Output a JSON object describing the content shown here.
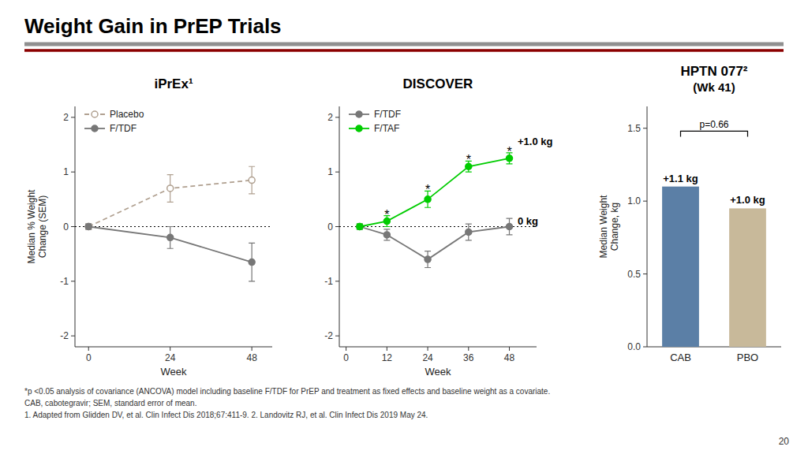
{
  "title": "Weight Gain in PrEP Trials",
  "footnotes": [
    "*p <0.05 analysis of covariance (ANCOVA) model including baseline F/TDF for PrEP and treatment as fixed effects and baseline weight as a covariate.",
    "CAB, cabotegravir; SEM, standard error of mean.",
    "1. Adapted from Glidden DV, et al. Clin Infect Dis 2018;67:411-9. 2. Landovitz RJ, et al. Clin Infect Dis 2019 May 24."
  ],
  "page_number": "20",
  "chart_data": [
    {
      "type": "line",
      "title": "iPrEx¹",
      "x_label": "Week",
      "y_label": "Median % Weight\nChange (SEM)",
      "x": [
        0,
        24,
        48
      ],
      "xlim": [
        -4,
        54
      ],
      "xticks": [
        0,
        24,
        48
      ],
      "ylim": [
        -2.2,
        2.2
      ],
      "yticks": [
        -2,
        -1,
        0,
        1,
        2
      ],
      "grid": false,
      "legend": "upper left",
      "reference_line": {
        "y": 0,
        "line_style": "dotted"
      },
      "series": [
        {
          "name": "Placebo",
          "color": "#b0a090",
          "line_style": "dashed",
          "marker": "circle-open",
          "values": [
            0.0,
            0.7,
            0.85
          ],
          "errors": [
            0.05,
            0.25,
            0.25
          ]
        },
        {
          "name": "F/TDF",
          "color": "#777777",
          "line_style": "solid",
          "marker": "circle",
          "values": [
            0.0,
            -0.2,
            -0.65
          ],
          "errors": [
            0.05,
            0.2,
            0.35
          ]
        }
      ]
    },
    {
      "type": "line",
      "title": "DISCOVER",
      "x_label": "Week",
      "x": [
        4,
        12,
        24,
        36,
        48
      ],
      "xlim": [
        -2,
        56
      ],
      "xticks": [
        0,
        12,
        24,
        36,
        48
      ],
      "ylim": [
        -2.2,
        2.2
      ],
      "yticks": [
        -2,
        -1,
        0,
        1,
        2
      ],
      "grid": false,
      "legend": "upper left",
      "reference_line": {
        "y": 0,
        "line_style": "dotted"
      },
      "series": [
        {
          "name": "F/TDF",
          "color": "#777777",
          "line_style": "solid",
          "marker": "circle",
          "values": [
            0.0,
            -0.15,
            -0.6,
            -0.1,
            0.0
          ],
          "errors": [
            0.05,
            0.1,
            0.15,
            0.15,
            0.15
          ]
        },
        {
          "name": "F/TAF",
          "color": "#00cc00",
          "line_style": "solid",
          "marker": "circle",
          "values": [
            0.0,
            0.1,
            0.5,
            1.1,
            1.25
          ],
          "errors": [
            0.05,
            0.1,
            0.15,
            0.1,
            0.1
          ]
        }
      ],
      "annotations": [
        {
          "text": "*",
          "x": 12
        },
        {
          "text": "*",
          "x": 24
        },
        {
          "text": "*",
          "x": 36
        },
        {
          "text": "*",
          "x": 48
        },
        {
          "text": "+1.0 kg",
          "x": 49.5,
          "y": 1.55
        },
        {
          "text": "0 kg",
          "x": 49.5,
          "y": 0.1
        }
      ]
    },
    {
      "type": "bar",
      "title": "HPTN 077²",
      "subtitle": "(Wk 41)",
      "y_label": "Median Weight\nChange, kg",
      "categories": [
        "CAB",
        "PBO"
      ],
      "values": [
        1.1,
        0.95
      ],
      "value_labels": [
        "+1.1 kg",
        "+1.0 kg"
      ],
      "data_labels": true,
      "colors": [
        "#5b7fa6",
        "#c8b99a"
      ],
      "ylim": [
        0,
        1.65
      ],
      "yticks": [
        {
          "value": 0,
          "label": "0.0"
        },
        0.5,
        {
          "value": 1.0,
          "label": "1.0"
        },
        1.5
      ],
      "grid": false,
      "annotations": [
        {
          "text": "p=0.66",
          "y": 1.48
        }
      ]
    }
  ]
}
